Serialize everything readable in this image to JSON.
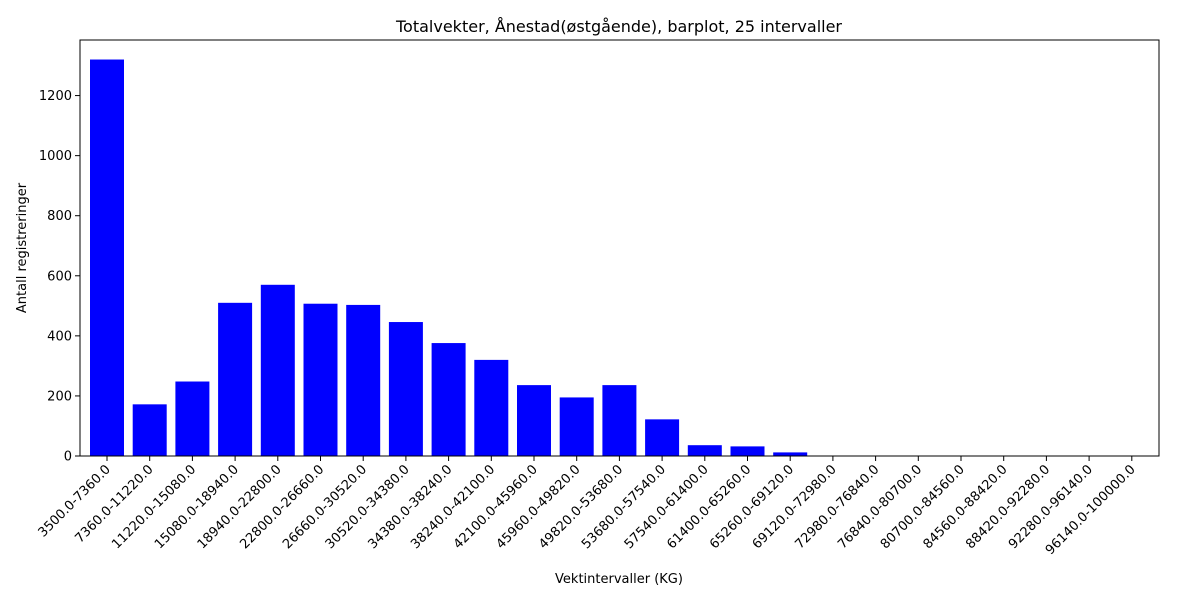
{
  "chart_data": {
    "type": "bar",
    "title": "Totalvekter, Ånestad(østgående), barplot, 25 intervaller",
    "xlabel": "Vektintervaller (KG)",
    "ylabel": "Antall registreringer",
    "ylim": [
      0,
      1385
    ],
    "yticks": [
      0,
      200,
      400,
      600,
      800,
      1000,
      1200
    ],
    "grid": false,
    "bar_color": "#0000ff",
    "categories": [
      "3500.0-7360.0",
      "7360.0-11220.0",
      "11220.0-15080.0",
      "15080.0-18940.0",
      "18940.0-22800.0",
      "22800.0-26660.0",
      "26660.0-30520.0",
      "30520.0-34380.0",
      "34380.0-38240.0",
      "38240.0-42100.0",
      "42100.0-45960.0",
      "45960.0-49820.0",
      "49820.0-53680.0",
      "53680.0-57540.0",
      "57540.0-61400.0",
      "61400.0-65260.0",
      "65260.0-69120.0",
      "69120.0-72980.0",
      "72980.0-76840.0",
      "76840.0-80700.0",
      "80700.0-84560.0",
      "84560.0-88420.0",
      "88420.0-92280.0",
      "92280.0-96140.0",
      "96140.0-100000.0"
    ],
    "values": [
      1320,
      172,
      248,
      510,
      570,
      507,
      503,
      446,
      376,
      320,
      236,
      195,
      236,
      122,
      36,
      32,
      12,
      1,
      1,
      0,
      0,
      0,
      0,
      0,
      0
    ]
  }
}
